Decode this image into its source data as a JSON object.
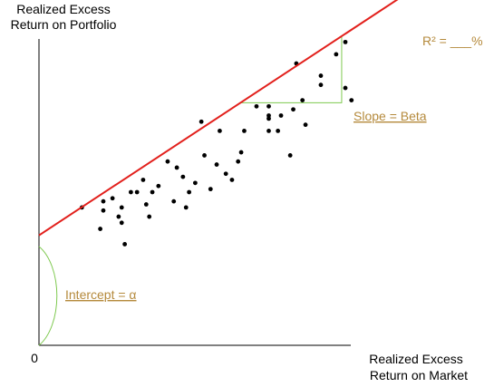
{
  "chart_data": {
    "type": "scatter",
    "ylabel_lines": [
      "Realized Excess",
      "Return on Portfolio"
    ],
    "xlabel_lines": [
      "Realized Excess",
      "Return on Market"
    ],
    "origin_label": "0",
    "annotations": {
      "r_squared": "R² = ___%",
      "slope": "Slope = Beta",
      "intercept": "Intercept = α"
    },
    "xlim": [
      0,
      100
    ],
    "ylim": [
      0,
      100
    ],
    "points": [
      [
        14,
        45
      ],
      [
        21,
        47
      ],
      [
        21,
        44
      ],
      [
        20,
        38
      ],
      [
        27,
        45
      ],
      [
        24,
        48
      ],
      [
        26,
        42
      ],
      [
        27,
        40
      ],
      [
        28,
        33
      ],
      [
        30,
        50
      ],
      [
        32,
        50
      ],
      [
        34,
        54
      ],
      [
        35,
        46
      ],
      [
        36,
        42
      ],
      [
        37,
        50
      ],
      [
        39,
        52
      ],
      [
        42,
        60
      ],
      [
        44,
        47
      ],
      [
        45,
        58
      ],
      [
        47,
        55
      ],
      [
        48,
        45
      ],
      [
        49,
        50
      ],
      [
        51,
        53
      ],
      [
        53,
        73
      ],
      [
        54,
        62
      ],
      [
        56,
        51
      ],
      [
        58,
        59
      ],
      [
        59,
        70
      ],
      [
        61,
        56
      ],
      [
        63,
        54
      ],
      [
        65,
        60
      ],
      [
        66,
        63
      ],
      [
        67,
        70
      ],
      [
        71,
        78
      ],
      [
        75,
        78
      ],
      [
        75,
        75
      ],
      [
        75,
        74
      ],
      [
        75,
        70
      ],
      [
        78,
        70
      ],
      [
        79,
        75
      ],
      [
        82,
        62
      ],
      [
        83,
        77
      ],
      [
        84,
        92
      ],
      [
        86,
        80
      ],
      [
        87,
        72
      ],
      [
        92,
        85
      ],
      [
        92,
        88
      ],
      [
        97,
        95
      ],
      [
        100,
        99
      ],
      [
        100,
        84
      ],
      [
        102,
        80
      ]
    ],
    "regression": {
      "intercept": 35.9,
      "slope": 0.658
    },
    "slope_triangle": {
      "x1": 65.8,
      "x2": 98.8
    },
    "colors": {
      "line": "#e2201c",
      "points": "#000000",
      "guide": "#7ec94f",
      "annotation_text": "#b58a3c",
      "axis": "#000000"
    }
  }
}
